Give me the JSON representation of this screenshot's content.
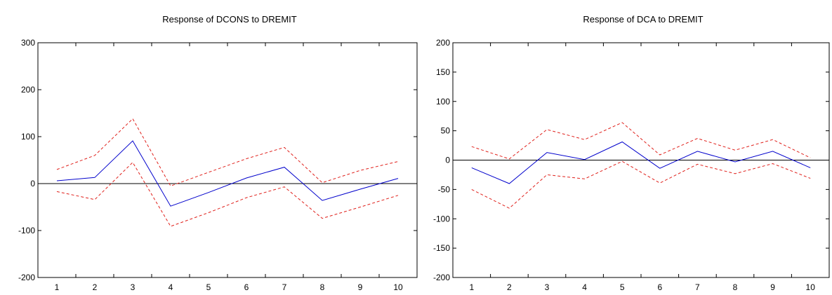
{
  "chart_data": [
    {
      "type": "line",
      "title": "Response of DCONS to DREMIT",
      "xlabel": "",
      "ylabel": "",
      "categories": [
        "1",
        "2",
        "3",
        "4",
        "5",
        "6",
        "7",
        "8",
        "9",
        "10"
      ],
      "ylim": [
        -200,
        300
      ],
      "yticks": [
        -200,
        -100,
        0,
        100,
        200,
        300
      ],
      "zero_line": true,
      "grid": false,
      "series": [
        {
          "role": "response",
          "style": "solid",
          "color": "#0000cc",
          "values": [
            6,
            13,
            91,
            -48,
            -19,
            12,
            35,
            -36,
            -12,
            11
          ]
        },
        {
          "role": "upper",
          "style": "dashed",
          "color": "#e0201b",
          "values": [
            30,
            60,
            138,
            -5,
            24,
            53,
            77,
            2,
            28,
            47
          ]
        },
        {
          "role": "lower",
          "style": "dashed",
          "color": "#e0201b",
          "values": [
            -17,
            -34,
            45,
            -91,
            -62,
            -30,
            -7,
            -74,
            -50,
            -25
          ]
        }
      ]
    },
    {
      "type": "line",
      "title": "Response of DCA to DREMIT",
      "xlabel": "",
      "ylabel": "",
      "categories": [
        "1",
        "2",
        "3",
        "4",
        "5",
        "6",
        "7",
        "8",
        "9",
        "10"
      ],
      "ylim": [
        -200,
        200
      ],
      "yticks": [
        -200,
        -150,
        -100,
        -50,
        0,
        50,
        100,
        150,
        200
      ],
      "zero_line": true,
      "grid": false,
      "series": [
        {
          "role": "response",
          "style": "solid",
          "color": "#0000cc",
          "values": [
            -13,
            -40,
            13,
            1,
            31,
            -14,
            15,
            -3,
            15,
            -13
          ]
        },
        {
          "role": "upper",
          "style": "dashed",
          "color": "#e0201b",
          "values": [
            23,
            2,
            52,
            35,
            64,
            9,
            37,
            17,
            35,
            4
          ]
        },
        {
          "role": "lower",
          "style": "dashed",
          "color": "#e0201b",
          "values": [
            -50,
            -82,
            -25,
            -32,
            -2,
            -39,
            -7,
            -23,
            -6,
            -31
          ]
        }
      ]
    }
  ]
}
